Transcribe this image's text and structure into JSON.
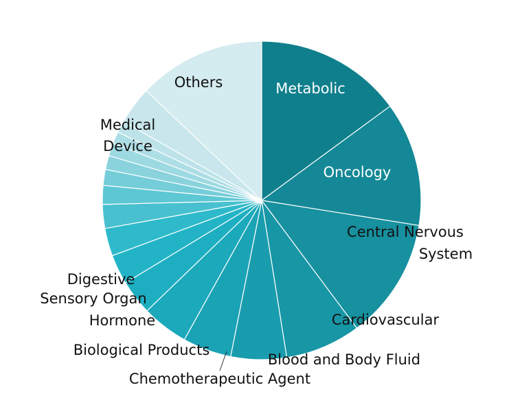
{
  "chart_data": {
    "type": "pie",
    "start": "12 o'clock",
    "direction": "clockwise",
    "slices": [
      {
        "label": "Metabolic",
        "value": 14.8,
        "color": "#0f7f8c",
        "label_color": "#ffffff"
      },
      {
        "label": "Oncology",
        "value": 12.5,
        "color": "#148896",
        "label_color": "#ffffff"
      },
      {
        "label": "Central Nervous System",
        "value": 12.2,
        "color": "#17909f",
        "label_color": "#111111"
      },
      {
        "label": "Cardiovascular",
        "value": 7.6,
        "color": "#1796a6",
        "label_color": "#111111"
      },
      {
        "label": "Blood and Body Fluid",
        "value": 5.6,
        "color": "#199dae",
        "label_color": "#111111"
      },
      {
        "label": "Chemotherapeutic Agent",
        "value": 4.9,
        "color": "#1aa3b5",
        "label_color": "#111111"
      },
      {
        "label": "Biological Products",
        "value": 4.7,
        "color": "#1ba9bb",
        "label_color": "#111111"
      },
      {
        "label": "Hormone",
        "value": 3.5,
        "color": "#1dafc1",
        "label_color": "#111111"
      },
      {
        "label": "Sensory Organ",
        "value": 3.0,
        "color": "#22b4c6",
        "label_color": "#111111"
      },
      {
        "label": "Digestive",
        "value": 2.8,
        "color": "#2fbacb",
        "label_color": "#111111"
      },
      {
        "label": "",
        "value": 2.4,
        "color": "#48c0cf",
        "label_color": "#111111"
      },
      {
        "label": "",
        "value": 1.9,
        "color": "#5ec7d4",
        "label_color": "#111111"
      },
      {
        "label": "",
        "value": 1.6,
        "color": "#75cdd9",
        "label_color": "#111111"
      },
      {
        "label": "",
        "value": 1.4,
        "color": "#8ad3dd",
        "label_color": "#111111"
      },
      {
        "label": "",
        "value": 1.3,
        "color": "#9dd9e1",
        "label_color": "#111111"
      },
      {
        "label": "",
        "value": 1.2,
        "color": "#aedee5",
        "label_color": "#111111"
      },
      {
        "label": "",
        "value": 1.2,
        "color": "#bde3e9",
        "label_color": "#111111"
      },
      {
        "label": "Medical Device",
        "value": 3.8,
        "color": "#c8e6eb",
        "label_color": "#111111"
      },
      {
        "label": "Others",
        "value": 12.8,
        "color": "#d4ebef",
        "label_color": "#111111"
      }
    ]
  }
}
